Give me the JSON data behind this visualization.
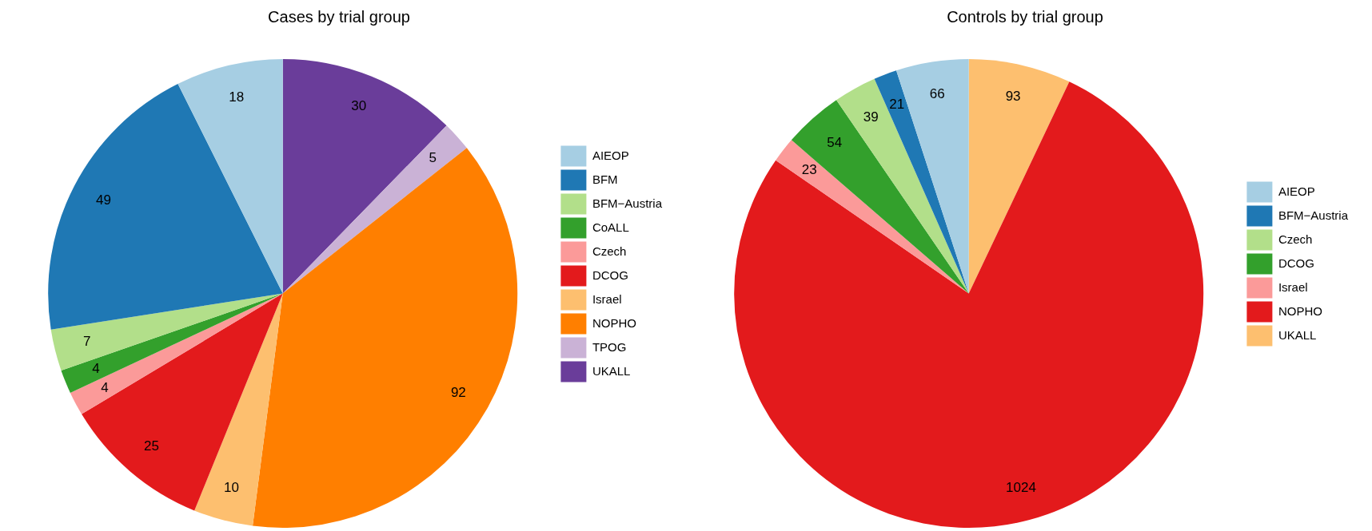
{
  "chart_data": [
    {
      "type": "pie",
      "title": "Cases by trial group",
      "categories": [
        "AIEOP",
        "BFM",
        "BFM−Austria",
        "CoALL",
        "Czech",
        "DCOG",
        "Israel",
        "NOPHO",
        "TPOG",
        "UKALL"
      ],
      "values": [
        18,
        49,
        7,
        4,
        4,
        25,
        10,
        92,
        5,
        30
      ],
      "colors": [
        "#a6cee3",
        "#1f78b4",
        "#b2df8a",
        "#33a02c",
        "#fb9a99",
        "#e31a1c",
        "#fdbf6f",
        "#ff7f00",
        "#cab2d6",
        "#6a3d9a"
      ],
      "data_labels": true,
      "legend": "right"
    },
    {
      "type": "pie",
      "title": "Controls by trial group",
      "categories": [
        "AIEOP",
        "BFM−Austria",
        "Czech",
        "DCOG",
        "Israel",
        "NOPHO",
        "UKALL"
      ],
      "values": [
        66,
        21,
        39,
        54,
        23,
        1024,
        93
      ],
      "colors": [
        "#a6cee3",
        "#1f78b4",
        "#b2df8a",
        "#33a02c",
        "#fb9a99",
        "#e31a1c",
        "#fdbf6f"
      ],
      "data_labels": true,
      "legend": "right"
    }
  ]
}
